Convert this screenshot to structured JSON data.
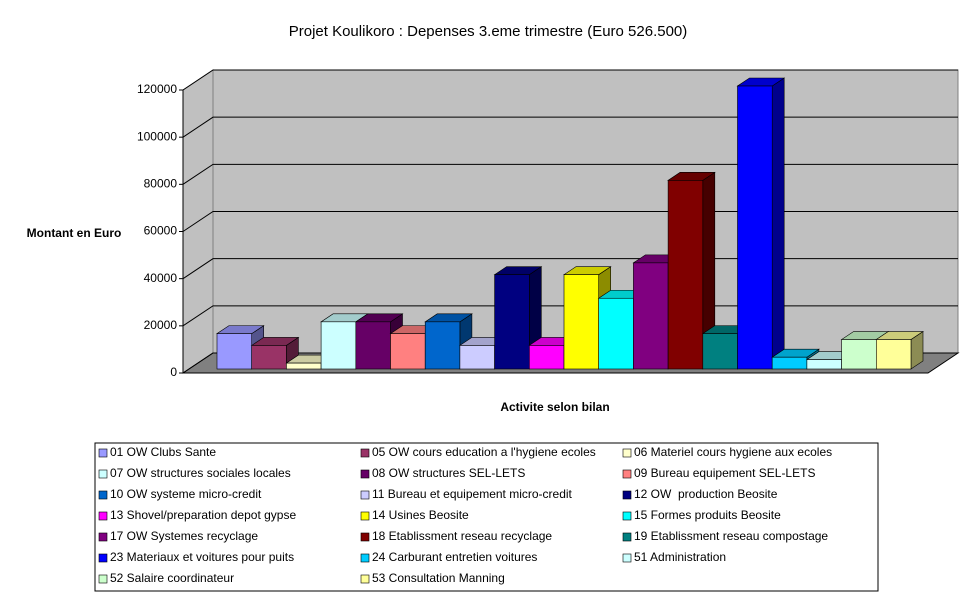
{
  "chart_data": {
    "type": "bar3d",
    "title": "Projet Koulikoro : Depenses 3.eme trimestre (Euro 526.500)",
    "ylabel": "Montant en Euro",
    "xlabel": "Activite selon bilan",
    "categories": [
      "01 OW Clubs Sante",
      "05 OW cours education a l'hygiene ecoles",
      "06 Materiel cours hygiene aux ecoles",
      "07 OW structures sociales locales",
      "08 OW structures SEL-LETS",
      "09 Bureau equipement SEL-LETS",
      "10 OW systeme micro-credit",
      "11 Bureau et equipement micro-credit",
      "12 OW  production Beosite",
      "13 Shovel/preparation depot gypse",
      "14 Usines Beosite",
      "15 Formes produits Beosite",
      "17 OW Systemes recyclage",
      "18 Etablissment reseau recyclage",
      "19 Etablissment reseau compostage",
      "23 Materiaux et voitures pour puits",
      "24 Carburant entretien voitures",
      "51 Administration",
      "52 Salaire coordinateur",
      "53 Consultation Manning"
    ],
    "values": [
      15000,
      10000,
      2500,
      20000,
      20000,
      15000,
      20000,
      10000,
      40000,
      10000,
      40000,
      30000,
      45000,
      80000,
      15000,
      120000,
      5000,
      4000,
      12500,
      12500
    ],
    "colors": [
      "#9999ff",
      "#993366",
      "#ffffcc",
      "#ccffff",
      "#660066",
      "#ff8080",
      "#0066cc",
      "#ccccff",
      "#000080",
      "#ff00ff",
      "#ffff00",
      "#00ffff",
      "#800080",
      "#800000",
      "#008080",
      "#0000ff",
      "#00ccff",
      "#ccffff",
      "#ccffcc",
      "#ffff99"
    ],
    "ylim": [
      0,
      120000
    ],
    "yticks": [
      0,
      20000,
      40000,
      60000,
      80000,
      100000,
      120000
    ],
    "grid": true
  }
}
